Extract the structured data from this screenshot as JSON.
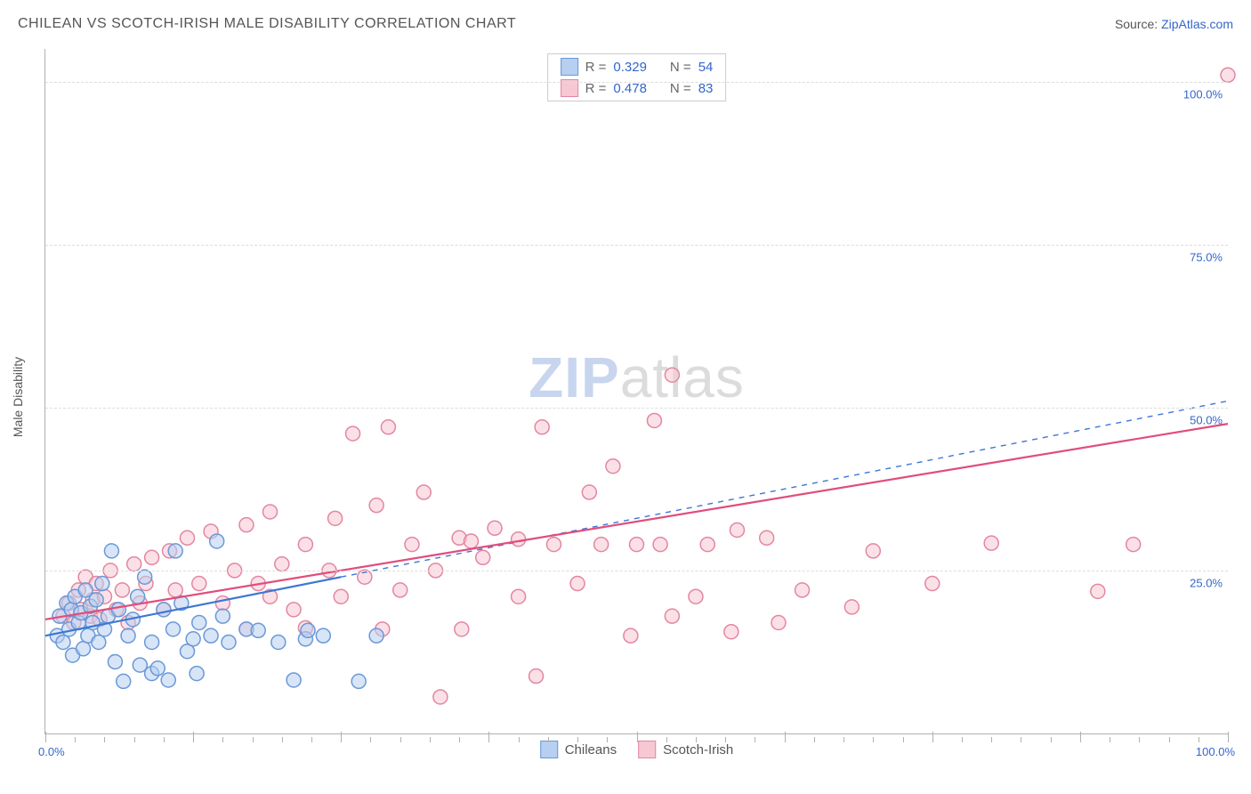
{
  "header": {
    "title": "CHILEAN VS SCOTCH-IRISH MALE DISABILITY CORRELATION CHART",
    "source_label": "Source: ",
    "source_value": "ZipAtlas.com"
  },
  "chart": {
    "type": "scatter",
    "y_label": "Male Disability",
    "xlim": [
      0,
      100
    ],
    "ylim": [
      0,
      105
    ],
    "y_gridlines": [
      25,
      50,
      75,
      100
    ],
    "y_tick_labels": [
      "25.0%",
      "50.0%",
      "75.0%",
      "100.0%"
    ],
    "x_axis_start_label": "0.0%",
    "x_axis_end_label": "100.0%",
    "x_minor_tick_step": 2.5,
    "x_major_tick_step": 12.5,
    "background_color": "#ffffff",
    "grid_color": "#dddddd",
    "axis_color": "#b0b0b0",
    "text_color": "#555555",
    "value_color": "#3366cc",
    "point_radius": 8,
    "point_stroke_width": 1.5,
    "series": {
      "chileans": {
        "label": "Chileans",
        "fill": "#b7cff0",
        "stroke": "#6a98d8",
        "trend_color": "#3d77d4",
        "trend_dash": "6,6",
        "trend_width": 1.4,
        "trend_start": [
          0,
          15
        ],
        "trend_end": [
          100,
          51
        ],
        "trend_solid_portion": 0.25,
        "stats": {
          "r_label": "R =",
          "r": "0.329",
          "n_label": "N =",
          "n": "54"
        },
        "points": [
          [
            1,
            15
          ],
          [
            1.2,
            18
          ],
          [
            1.5,
            14
          ],
          [
            1.8,
            20
          ],
          [
            2,
            16
          ],
          [
            2.2,
            19
          ],
          [
            2.3,
            12
          ],
          [
            2.5,
            21
          ],
          [
            2.8,
            17
          ],
          [
            3,
            18.5
          ],
          [
            3.2,
            13
          ],
          [
            3.4,
            22
          ],
          [
            3.6,
            15
          ],
          [
            3.8,
            19.5
          ],
          [
            4,
            17
          ],
          [
            4.3,
            20.5
          ],
          [
            4.5,
            14
          ],
          [
            4.8,
            23
          ],
          [
            5,
            16
          ],
          [
            5.3,
            18
          ],
          [
            5.6,
            28
          ],
          [
            5.9,
            11
          ],
          [
            6.2,
            19
          ],
          [
            6.6,
            8
          ],
          [
            7,
            15
          ],
          [
            7.4,
            17.5
          ],
          [
            7.8,
            21
          ],
          [
            8,
            10.5
          ],
          [
            8.4,
            24
          ],
          [
            9,
            14
          ],
          [
            9.0,
            9.2
          ],
          [
            9.5,
            10
          ],
          [
            10,
            19
          ],
          [
            10.4,
            8.2
          ],
          [
            10.8,
            16
          ],
          [
            11,
            28
          ],
          [
            11.5,
            20
          ],
          [
            12,
            12.6
          ],
          [
            12.5,
            14.5
          ],
          [
            12.8,
            9.2
          ],
          [
            13,
            17
          ],
          [
            14,
            15
          ],
          [
            14.5,
            29.5
          ],
          [
            15,
            18
          ],
          [
            15.5,
            14
          ],
          [
            17,
            16
          ],
          [
            18,
            15.8
          ],
          [
            19.7,
            14
          ],
          [
            21,
            8.2
          ],
          [
            22,
            14.5
          ],
          [
            22.2,
            15.8
          ],
          [
            23.5,
            15
          ],
          [
            26.5,
            8
          ],
          [
            28,
            15
          ]
        ]
      },
      "scotch_irish": {
        "label": "Scotch-Irish",
        "fill": "#f7c8d3",
        "stroke": "#e386a1",
        "trend_color": "#e14d7b",
        "trend_dash": "none",
        "trend_width": 2.2,
        "trend_start": [
          0,
          17.5
        ],
        "trend_end": [
          100,
          47.5
        ],
        "trend_solid_portion": 1.0,
        "stats": {
          "r_label": "R =",
          "r": "0.478",
          "n_label": "N =",
          "n": "83"
        },
        "points": [
          [
            1.5,
            18
          ],
          [
            2,
            20
          ],
          [
            2.4,
            17
          ],
          [
            2.8,
            22
          ],
          [
            3,
            19
          ],
          [
            3.4,
            24
          ],
          [
            3.8,
            18
          ],
          [
            4,
            20.5
          ],
          [
            4.3,
            23
          ],
          [
            4.6,
            17.5
          ],
          [
            5,
            21
          ],
          [
            5.5,
            25
          ],
          [
            6,
            19
          ],
          [
            6.5,
            22
          ],
          [
            7,
            17
          ],
          [
            7.5,
            26
          ],
          [
            8,
            20
          ],
          [
            8.5,
            23
          ],
          [
            9,
            27
          ],
          [
            10,
            19
          ],
          [
            10.5,
            28
          ],
          [
            11,
            22
          ],
          [
            12,
            30
          ],
          [
            13,
            23
          ],
          [
            14,
            31
          ],
          [
            15,
            20
          ],
          [
            16,
            25
          ],
          [
            17,
            32
          ],
          [
            18,
            23
          ],
          [
            17,
            16
          ],
          [
            19,
            21
          ],
          [
            19,
            34
          ],
          [
            20,
            26
          ],
          [
            21,
            19
          ],
          [
            22,
            29
          ],
          [
            22,
            16.2
          ],
          [
            24,
            25
          ],
          [
            24.5,
            33
          ],
          [
            25,
            21
          ],
          [
            26,
            46
          ],
          [
            27,
            24
          ],
          [
            28,
            35
          ],
          [
            28.5,
            16
          ],
          [
            29,
            47
          ],
          [
            30,
            22
          ],
          [
            31,
            29
          ],
          [
            32,
            37
          ],
          [
            33,
            25
          ],
          [
            33.4,
            5.6
          ],
          [
            35,
            30
          ],
          [
            35.2,
            16
          ],
          [
            36,
            29.5
          ],
          [
            37,
            27
          ],
          [
            38,
            31.5
          ],
          [
            40,
            21
          ],
          [
            40,
            29.8
          ],
          [
            41.5,
            8.8
          ],
          [
            42,
            47
          ],
          [
            43,
            29
          ],
          [
            45,
            23
          ],
          [
            46,
            37
          ],
          [
            47,
            29
          ],
          [
            48,
            41
          ],
          [
            49.5,
            15
          ],
          [
            50,
            29
          ],
          [
            51.5,
            48
          ],
          [
            52,
            29
          ],
          [
            53,
            55
          ],
          [
            53,
            18
          ],
          [
            55,
            21
          ],
          [
            56,
            29
          ],
          [
            58,
            15.6
          ],
          [
            58.5,
            31.2
          ],
          [
            61,
            30
          ],
          [
            62,
            17
          ],
          [
            64,
            22
          ],
          [
            68.2,
            19.4
          ],
          [
            70,
            28
          ],
          [
            75,
            23
          ],
          [
            80,
            29.2
          ],
          [
            89,
            21.8
          ],
          [
            92,
            29
          ],
          [
            100,
            101
          ]
        ]
      }
    }
  },
  "stats_box_order": [
    "chileans",
    "scotch_irish"
  ],
  "bottom_legend_order": [
    "chileans",
    "scotch_irish"
  ],
  "watermark": {
    "part1": "ZIP",
    "part2": "atlas"
  }
}
